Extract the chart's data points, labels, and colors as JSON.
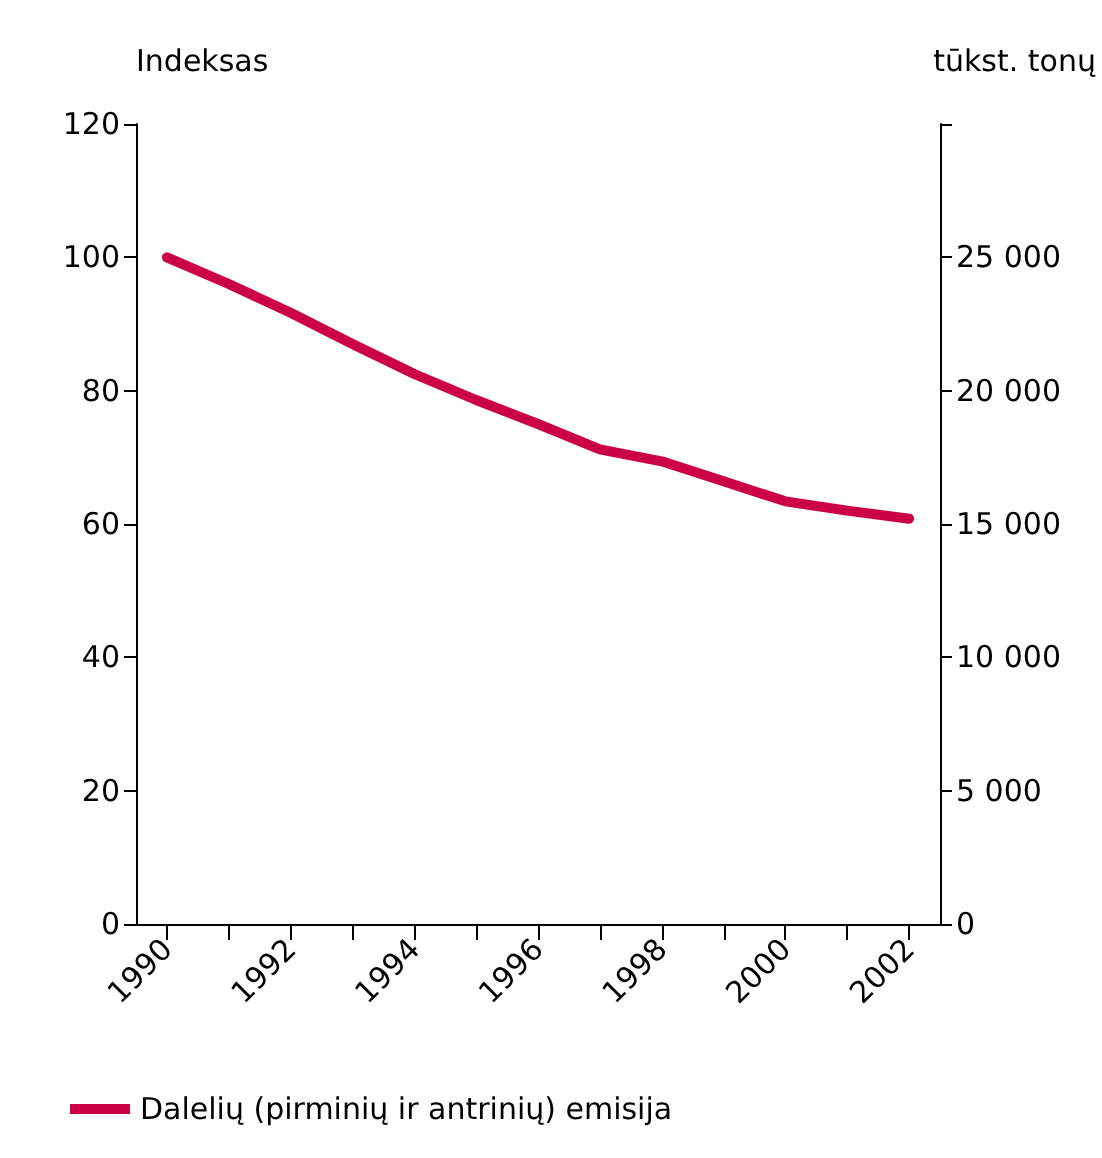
{
  "chart_data": {
    "type": "line",
    "ylabel": "Indeksas",
    "y2label": "tūkst. tonų",
    "x": [
      1990,
      1991,
      1992,
      1993,
      1994,
      1995,
      1996,
      1997,
      1998,
      1999,
      2000,
      2001,
      2002
    ],
    "series": [
      {
        "name": "Dalelių (pirminių ir antrinių) emisija",
        "color": "#cc0047",
        "values": [
          100,
          96,
          91.7,
          87,
          82.5,
          78.6,
          75,
          71.2,
          69.4,
          66.4,
          63.4,
          62,
          60.8
        ]
      }
    ],
    "xlim": [
      1989.5,
      2002.5
    ],
    "xticks": [
      1990,
      {
        "value": 1991,
        "label": null
      },
      1992,
      {
        "value": 1993,
        "label": null
      },
      1994,
      {
        "value": 1995,
        "label": null
      },
      1996,
      {
        "value": 1997,
        "label": null
      },
      1998,
      {
        "value": 1999,
        "label": null
      },
      2000,
      {
        "value": 2001,
        "label": null
      },
      2002
    ],
    "ylim": [
      0,
      120
    ],
    "yticks": [
      0,
      20,
      40,
      60,
      80,
      100,
      120
    ],
    "y2lim": [
      0,
      30000
    ],
    "y2ticks": [
      0,
      {
        "value": 5000,
        "label": "5 000"
      },
      {
        "value": 10000,
        "label": "10 000"
      },
      {
        "value": 15000,
        "label": "15 000"
      },
      {
        "value": 20000,
        "label": "20 000"
      },
      {
        "value": 25000,
        "label": "25 000"
      },
      {
        "value": 30000,
        "label": null
      }
    ],
    "grid": false,
    "legend": "bottom",
    "marker": "none",
    "line_style": "solid"
  }
}
